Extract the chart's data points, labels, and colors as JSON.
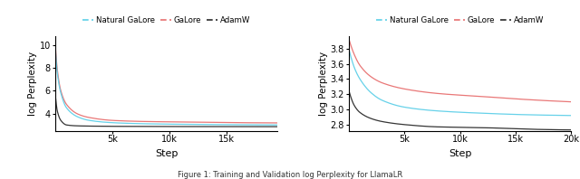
{
  "legend_labels": [
    "Natural GaLore",
    "GaLore",
    "AdamW"
  ],
  "legend_colors": [
    "#5ecfe8",
    "#e87070",
    "#2a2a2a"
  ],
  "ylabel": "log Perplexity",
  "xlabel": "Step",
  "left_plot": {
    "xlim": [
      0,
      19500
    ],
    "ylim": [
      2.5,
      10.8
    ],
    "yticks": [
      4,
      6,
      8,
      10
    ],
    "xticks": [
      5000,
      10000,
      15000
    ],
    "xticklabels": [
      "5k",
      "10k",
      "15k"
    ],
    "ng_pts_x": [
      0,
      200,
      500,
      1000,
      2000,
      3000,
      5000,
      8000,
      12000,
      16000,
      19500
    ],
    "ng_pts_y": [
      10.0,
      7.5,
      5.8,
      4.5,
      3.7,
      3.4,
      3.2,
      3.1,
      3.05,
      3.02,
      3.0
    ],
    "g_pts_x": [
      0,
      200,
      500,
      1000,
      2000,
      3000,
      5000,
      8000,
      12000,
      16000,
      19500
    ],
    "g_pts_y": [
      10.2,
      7.8,
      6.0,
      4.8,
      3.95,
      3.65,
      3.4,
      3.3,
      3.25,
      3.2,
      3.18
    ],
    "a_pts_x": [
      0,
      200,
      500,
      1000,
      2000,
      3000,
      5000,
      8000,
      12000,
      16000,
      19500
    ],
    "a_pts_y": [
      5.8,
      4.2,
      3.4,
      3.0,
      2.92,
      2.9,
      2.88,
      2.87,
      2.86,
      2.86,
      2.85
    ]
  },
  "right_plot": {
    "xlim": [
      0,
      20000
    ],
    "ylim": [
      2.72,
      3.97
    ],
    "yticks": [
      2.8,
      3.0,
      3.2,
      3.4,
      3.6,
      3.8
    ],
    "xticks": [
      5000,
      10000,
      15000,
      20000
    ],
    "xticklabels": [
      "5k",
      "10k",
      "15k",
      "20k"
    ],
    "ng_pts_x": [
      0,
      500,
      1000,
      2000,
      3000,
      5000,
      8000,
      12000,
      16000,
      20000
    ],
    "ng_pts_y": [
      3.8,
      3.55,
      3.4,
      3.22,
      3.12,
      3.03,
      2.98,
      2.95,
      2.93,
      2.92
    ],
    "g_pts_x": [
      0,
      500,
      1000,
      2000,
      3000,
      5000,
      8000,
      12000,
      16000,
      20000
    ],
    "g_pts_y": [
      3.93,
      3.72,
      3.58,
      3.43,
      3.35,
      3.27,
      3.21,
      3.17,
      3.13,
      3.1
    ],
    "a_pts_x": [
      0,
      500,
      1000,
      2000,
      3000,
      5000,
      8000,
      12000,
      16000,
      20000
    ],
    "a_pts_y": [
      3.25,
      3.05,
      2.96,
      2.88,
      2.84,
      2.8,
      2.77,
      2.76,
      2.74,
      2.73
    ]
  }
}
